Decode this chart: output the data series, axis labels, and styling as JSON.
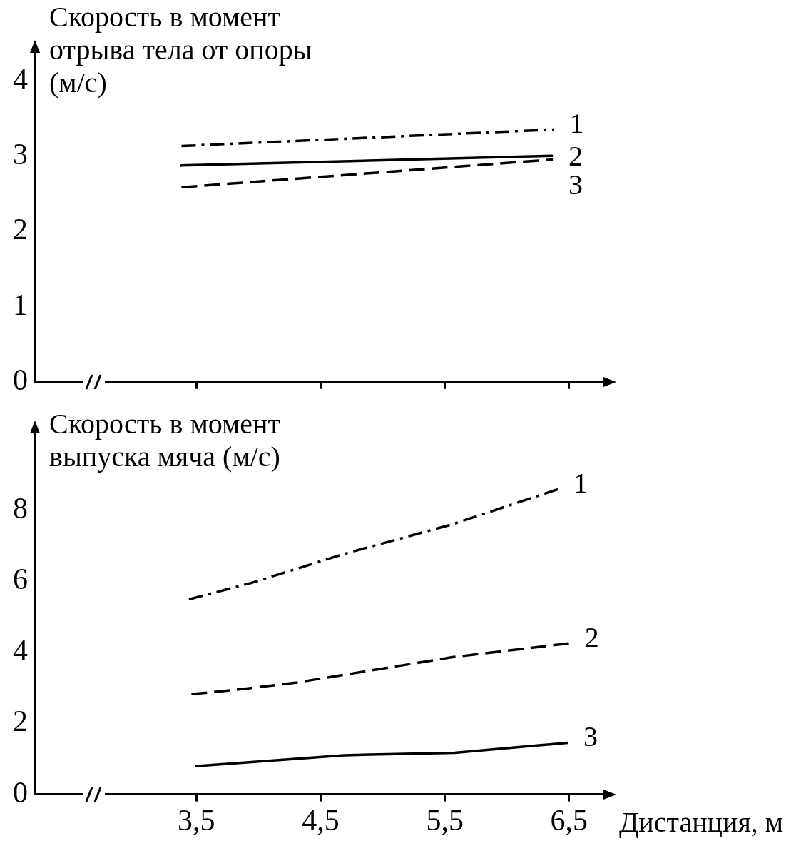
{
  "chart_data": [
    {
      "type": "line",
      "ylabel": "Скорость в момент отрыва тела от опоры (м/с)",
      "xlim": [
        2.2,
        6.8
      ],
      "xticks": [
        {
          "value": 3.5,
          "label": null
        },
        {
          "value": 4.5,
          "label": null
        },
        {
          "value": 5.5,
          "label": null
        },
        {
          "value": 6.5,
          "label": null
        }
      ],
      "ylim": [
        0,
        4.4
      ],
      "yticks": [
        0,
        1,
        2,
        3,
        4
      ],
      "tick_labels": "y",
      "series": [
        {
          "name": "1",
          "color": "#000000",
          "line_style": "dashdot",
          "x": [
            3.38,
            6.38
          ],
          "values": [
            3.14,
            3.36
          ]
        },
        {
          "name": "2",
          "color": "#000000",
          "line_style": "solid",
          "x": [
            3.37,
            6.37
          ],
          "values": [
            2.88,
            3.01
          ]
        },
        {
          "name": "3",
          "color": "#000000",
          "line_style": "dashed",
          "x": [
            3.38,
            6.37
          ],
          "values": [
            2.59,
            2.96
          ]
        }
      ]
    },
    {
      "type": "line",
      "ylabel": "Скорость в момент выпуска мяча (м/с)",
      "xlabel": "Дистанция, м",
      "xlim": [
        2.2,
        6.8
      ],
      "xticks": [
        {
          "value": 3.5,
          "label": "3,5"
        },
        {
          "value": 4.5,
          "label": "4,5"
        },
        {
          "value": 5.5,
          "label": "5,5"
        },
        {
          "value": 6.5,
          "label": "6,5"
        }
      ],
      "ylim": [
        0,
        10.2
      ],
      "yticks": [
        0,
        2,
        4,
        6,
        8
      ],
      "series": [
        {
          "name": "1",
          "color": "#000000",
          "line_style": "dashdot",
          "x": [
            3.44,
            3.94,
            4.71,
            5.56,
            6.41
          ],
          "values": [
            5.49,
            5.95,
            6.79,
            7.6,
            8.59
          ]
        },
        {
          "name": "2",
          "color": "#000000",
          "line_style": "dashed",
          "x": [
            3.46,
            3.89,
            4.31,
            5.56,
            6.5
          ],
          "values": [
            2.82,
            2.97,
            3.15,
            3.86,
            4.25
          ]
        },
        {
          "name": "3",
          "color": "#000000",
          "line_style": "solid",
          "x": [
            3.49,
            4.69,
            5.58,
            6.49
          ],
          "values": [
            0.79,
            1.1,
            1.17,
            1.45
          ]
        }
      ]
    }
  ]
}
